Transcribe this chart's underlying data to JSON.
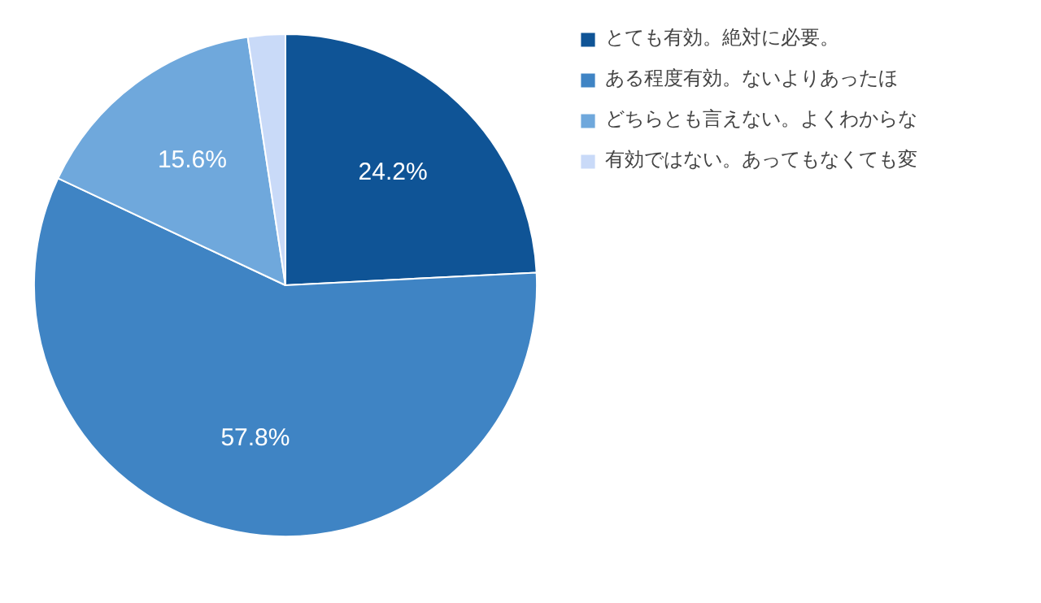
{
  "chart_data": {
    "type": "pie",
    "categories": [
      "とても有効。絶対に必要。",
      "ある程度有効。ないよりあったほ",
      "どちらとも言えない。よくわからな",
      "有効ではない。あってもなくても変"
    ],
    "values": [
      24.2,
      57.8,
      15.6,
      2.4
    ],
    "colors": [
      "#0f5496",
      "#3f84c4",
      "#6fa8dc",
      "#c9daf8"
    ],
    "value_labels": [
      "24.2%",
      "57.8%",
      "15.6%",
      null
    ],
    "legend": "right"
  }
}
